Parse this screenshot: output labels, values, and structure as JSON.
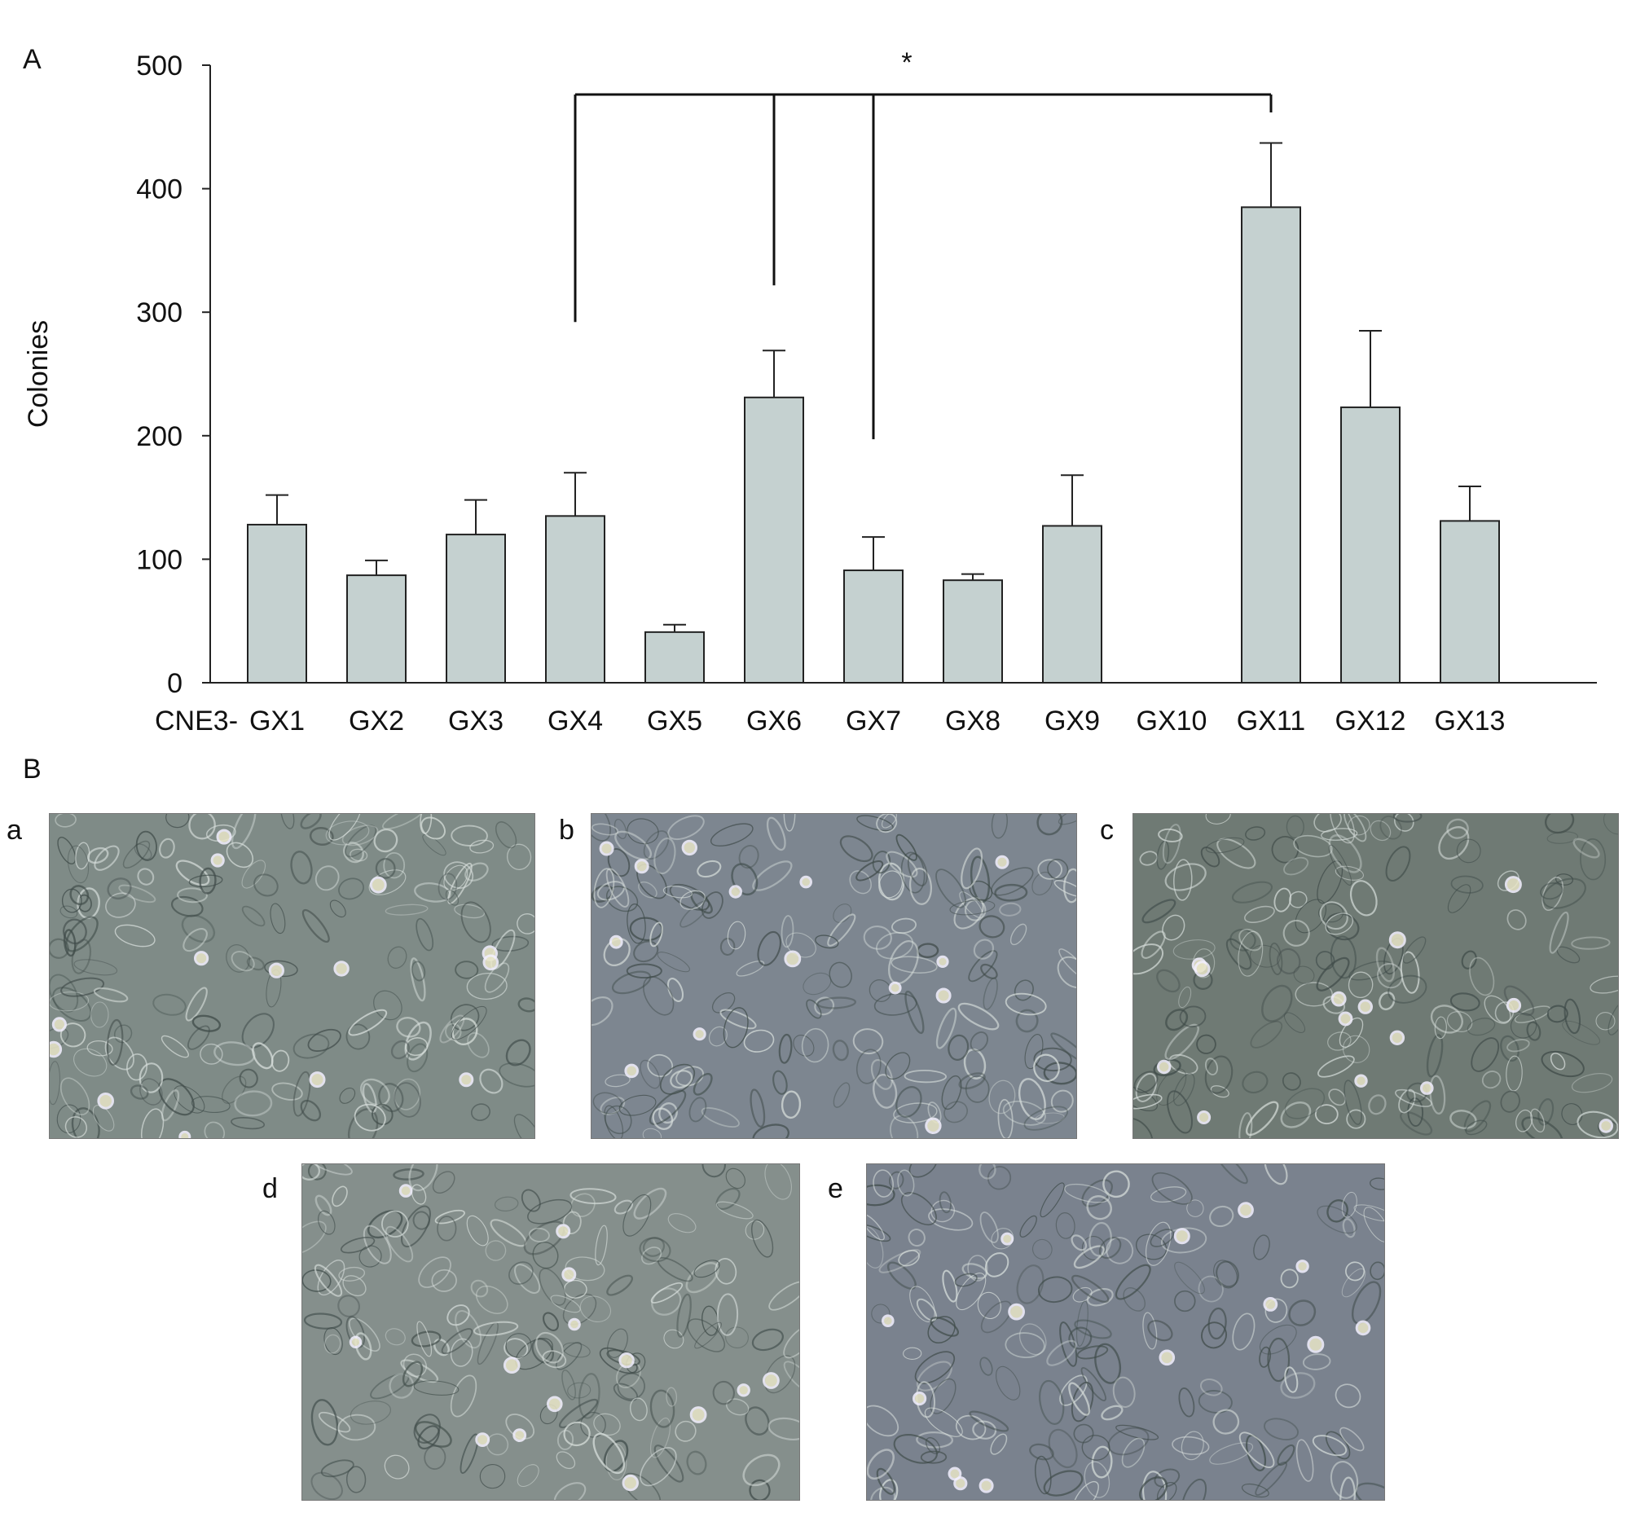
{
  "panel_a_label": "A",
  "panel_b_label": "B",
  "chart_data": {
    "type": "bar",
    "ylabel": "Colonies",
    "xlabel": "",
    "ylim": [
      0,
      500
    ],
    "yticks": [
      0,
      100,
      200,
      300,
      400,
      500
    ],
    "category_prefix": "CNE3-",
    "categories": [
      "GX1",
      "GX2",
      "GX3",
      "GX4",
      "GX5",
      "GX6",
      "GX7",
      "GX8",
      "GX9",
      "GX10",
      "GX11",
      "GX12",
      "GX13"
    ],
    "values": [
      128,
      87,
      120,
      135,
      41,
      231,
      91,
      83,
      127,
      null,
      385,
      223,
      131
    ],
    "errors": [
      24,
      12,
      28,
      35,
      6,
      38,
      27,
      5,
      41,
      null,
      52,
      62,
      28
    ],
    "significance": {
      "label": "*",
      "groups": [
        "GX4",
        "GX6",
        "GX7"
      ],
      "compared_to": "GX11"
    },
    "colors": {
      "bar_fill": "#c5d1d0",
      "bar_stroke": "#222222",
      "axis": "#222222"
    },
    "grid": false,
    "legend": "none"
  },
  "micrographs": [
    {
      "label": "a",
      "tone": "#7f8b87"
    },
    {
      "label": "b",
      "tone": "#7d8690"
    },
    {
      "label": "c",
      "tone": "#6f7a74"
    },
    {
      "label": "d",
      "tone": "#858f8c"
    },
    {
      "label": "e",
      "tone": "#7a828e"
    }
  ]
}
